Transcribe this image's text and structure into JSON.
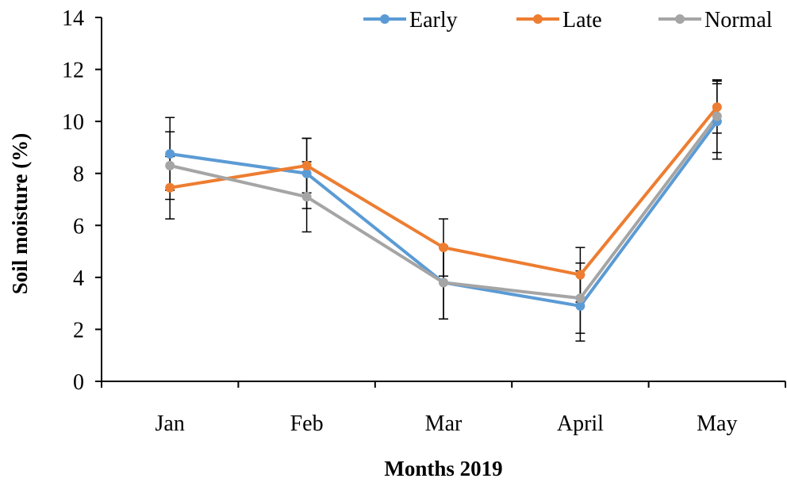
{
  "chart_data": {
    "type": "line",
    "title": "",
    "xlabel": "Months 2019",
    "ylabel": "Soil moisture (%)",
    "categories": [
      "Jan",
      "Feb",
      "Mar",
      "April",
      "May"
    ],
    "ylim": [
      0,
      14
    ],
    "yticks": [
      "0",
      "2",
      "4",
      "6",
      "8",
      "10",
      "12",
      "14"
    ],
    "legend_position": "top",
    "grid": false,
    "series": [
      {
        "name": "Early",
        "color": "#5B9BD5",
        "values": [
          8.75,
          8.0,
          3.8,
          2.9,
          10.0
        ],
        "error": [
          1.4,
          1.35,
          1.4,
          1.35,
          1.45
        ]
      },
      {
        "name": "Late",
        "color": "#ED7D31",
        "values": [
          7.45,
          8.3,
          5.15,
          4.1,
          10.55
        ],
        "error": [
          1.2,
          1.05,
          1.1,
          1.05,
          1.0
        ]
      },
      {
        "name": "Normal",
        "color": "#A5A5A5",
        "values": [
          8.3,
          7.1,
          3.8,
          3.2,
          10.2
        ],
        "error": [
          1.3,
          1.35,
          1.4,
          1.35,
          1.4
        ]
      }
    ]
  }
}
